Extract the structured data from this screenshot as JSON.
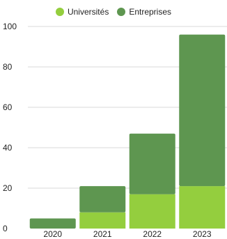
{
  "chart_data": {
    "type": "bar",
    "stacked": true,
    "categories": [
      "2020",
      "2021",
      "2022",
      "2023"
    ],
    "series": [
      {
        "name": "Universités",
        "color": "#94CE3E",
        "values": [
          0,
          8,
          17,
          21
        ]
      },
      {
        "name": "Entreprises",
        "color": "#5E9650",
        "values": [
          5,
          13,
          30,
          75
        ]
      }
    ],
    "ylim": [
      0,
      100
    ],
    "yticks": [
      "0",
      "20",
      "40",
      "60",
      "80",
      "100"
    ],
    "grid": true,
    "legend_position": "top-center",
    "title": "",
    "xlabel": "",
    "ylabel": ""
  }
}
